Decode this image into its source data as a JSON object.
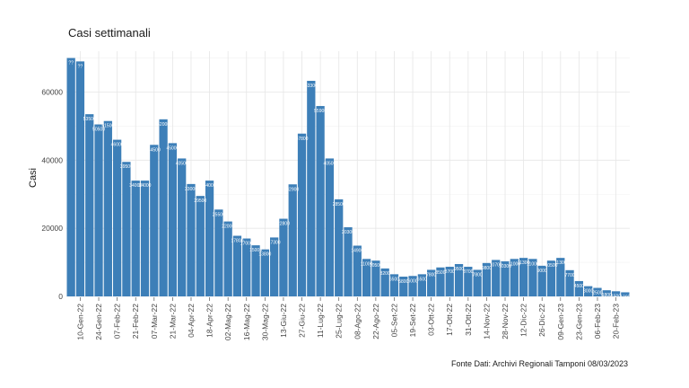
{
  "chart_data": {
    "type": "bar",
    "title": "Casi settimanali",
    "xlabel": "",
    "ylabel": "Casi",
    "caption": "Fonte Dati: Archivi Regionali Tamponi 08/03/2023",
    "bar_color": "#3d7fb8",
    "grid": true,
    "ylim": [
      0,
      72000
    ],
    "yticks": [
      0,
      20000,
      40000,
      60000
    ],
    "ytick_labels": [
      "0",
      "20000",
      "40000",
      "60000"
    ],
    "categories": [
      "03-Gen-22",
      "10-Gen-22",
      "17-Gen-22",
      "24-Gen-22",
      "31-Gen-22",
      "07-Feb-22",
      "14-Feb-22",
      "21-Feb-22",
      "28-Feb-22",
      "07-Mar-22",
      "14-Mar-22",
      "21-Mar-22",
      "28-Mar-22",
      "04-Apr-22",
      "11-Apr-22",
      "18-Apr-22",
      "25-Apr-22",
      "02-Mag-22",
      "09-Mag-22",
      "16-Mag-22",
      "23-Mag-22",
      "30-Mag-22",
      "06-Giu-22",
      "13-Giu-22",
      "20-Giu-22",
      "27-Giu-22",
      "04-Lug-22",
      "11-Lug-22",
      "18-Lug-22",
      "25-Lug-22",
      "01-Ago-22",
      "08-Ago-22",
      "15-Ago-22",
      "22-Ago-22",
      "29-Ago-22",
      "05-Set-22",
      "12-Set-22",
      "19-Set-22",
      "26-Set-22",
      "03-Ott-22",
      "10-Ott-22",
      "17-Ott-22",
      "24-Ott-22",
      "31-Ott-22",
      "07-Nov-22",
      "14-Nov-22",
      "21-Nov-22",
      "28-Nov-22",
      "05-Dic-22",
      "12-Dic-22",
      "19-Dic-22",
      "26-Dic-22",
      "02-Gen-23",
      "09-Gen-23",
      "16-Gen-23",
      "23-Gen-23",
      "30-Gen-23",
      "06-Feb-23",
      "13-Feb-23",
      "20-Feb-23",
      "27-Feb-23"
    ],
    "values": [
      70000,
      69000,
      53500,
      50500,
      51500,
      46000,
      39500,
      34000,
      34000,
      44500,
      52000,
      45000,
      40500,
      33000,
      29500,
      34000,
      25500,
      22000,
      17800,
      17000,
      15000,
      13800,
      17300,
      22800,
      32900,
      47800,
      63300,
      55900,
      40500,
      28500,
      20300,
      14900,
      11000,
      10500,
      8200,
      6500,
      5800,
      6000,
      6500,
      7800,
      8500,
      8700,
      9500,
      8700,
      7800,
      9800,
      10700,
      10300,
      11000,
      11300,
      11000,
      9000,
      10500,
      11300,
      7700,
      4500,
      3000,
      2500,
      1800,
      1500,
      1200
    ],
    "value_labels": [
      "??",
      "??",
      "53500",
      "50500",
      "51500",
      "46000",
      "39500",
      "34000",
      "34000",
      "44500",
      "52000",
      "45000",
      "40500",
      "33000",
      "29500",
      "34000",
      "25500",
      "22000",
      "17800",
      "17000",
      "15000",
      "13800",
      "17300",
      "22800",
      "32900",
      "47800",
      "63300",
      "55900",
      "40500",
      "28500",
      "20300",
      "14900",
      "11000",
      "10500",
      "8200",
      "6500",
      "5800",
      "6000",
      "6500",
      "7800",
      "8500",
      "8700",
      "9500",
      "8700",
      "7800",
      "9800",
      "10700",
      "10300",
      "11000",
      "11300",
      "11000",
      "9000",
      "10500",
      "11300",
      "7700",
      "4500",
      "3000",
      "2500",
      "1800",
      "1500",
      "1200"
    ],
    "xtick_labels": [
      "10-Gen-22",
      "24-Gen-22",
      "07-Feb-22",
      "21-Feb-22",
      "07-Mar-22",
      "21-Mar-22",
      "04-Apr-22",
      "18-Apr-22",
      "02-Mag-22",
      "16-Mag-22",
      "30-Mag-22",
      "13-Giu-22",
      "27-Giu-22",
      "11-Lug-22",
      "25-Lug-22",
      "08-Ago-22",
      "22-Ago-22",
      "05-Set-22",
      "19-Set-22",
      "03-Ott-22",
      "17-Ott-22",
      "31-Ott-22",
      "14-Nov-22",
      "28-Nov-22",
      "12-Dic-22",
      "26-Dic-22",
      "09-Gen-23",
      "23-Gen-23",
      "06-Feb-23",
      "20-Feb-23"
    ]
  }
}
